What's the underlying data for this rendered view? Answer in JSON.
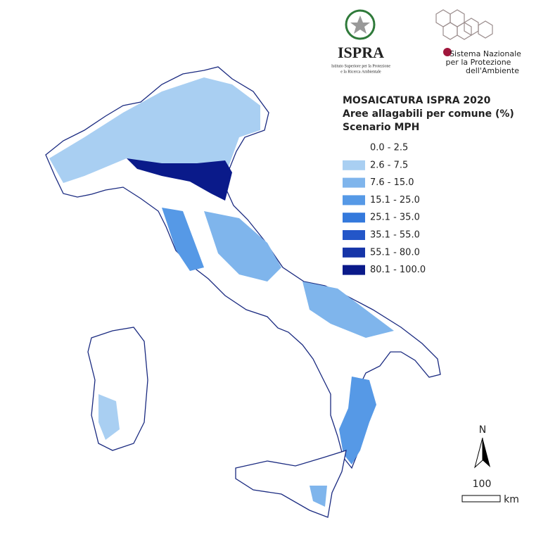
{
  "logos": {
    "ispra": "ISPRA",
    "ispra_sub": [
      "Istituto Superiore per la Protezione",
      "e la Ricerca Ambientale"
    ],
    "snpa": [
      "Sistema Nazionale",
      "per la Protezione",
      "dell'Ambiente"
    ]
  },
  "legend": {
    "title": [
      "MOSAICATURA ISPRA 2020",
      "Aree allagabili per comune (%)",
      "Scenario MPH"
    ],
    "items": [
      {
        "label": "0.0 - 2.5",
        "color": "#ffffff"
      },
      {
        "label": "2.6 - 7.5",
        "color": "#a9cff2"
      },
      {
        "label": "7.6 - 15.0",
        "color": "#7fb5ec"
      },
      {
        "label": "15.1 - 25.0",
        "color": "#5699e6"
      },
      {
        "label": "25.1 - 35.0",
        "color": "#3479dc"
      },
      {
        "label": "35.1 - 55.0",
        "color": "#2356c8"
      },
      {
        "label": "55.1 - 80.0",
        "color": "#1635a8"
      },
      {
        "label": "80.1 - 100.0",
        "color": "#0a1a8a"
      }
    ]
  },
  "north": "N",
  "scale": {
    "value": 100,
    "unit": "km"
  }
}
